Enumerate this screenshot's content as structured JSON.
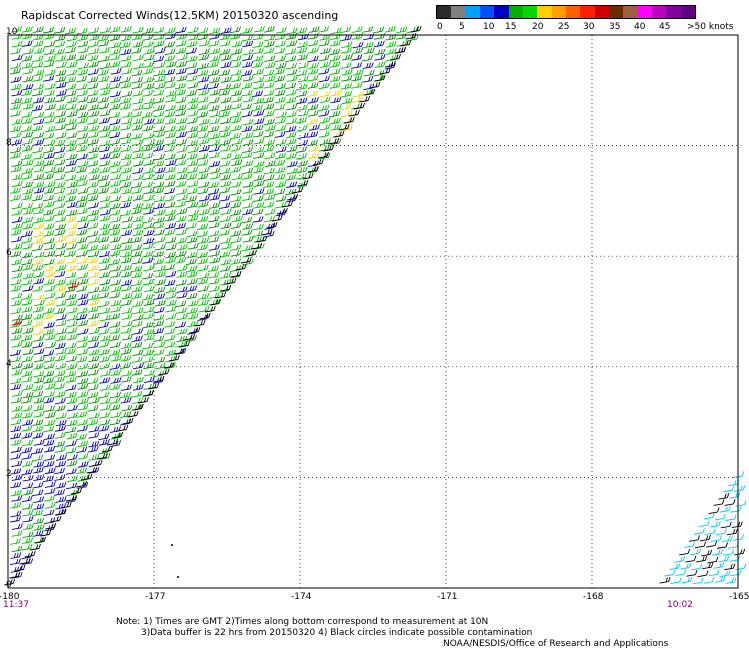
{
  "title": "Rapidscat Corrected Winds(12.5KM) 20150320 ascending",
  "legend": {
    "colors": [
      "#2a2a2a",
      "#808080",
      "#00a0ff",
      "#0050ff",
      "#0000c0",
      "#00b000",
      "#00d800",
      "#ffd000",
      "#ffa000",
      "#ff6000",
      "#ff2000",
      "#d00000",
      "#6a2c00",
      "#a06040",
      "#ff00ff",
      "#c000c0",
      "#8000a0",
      "#600080"
    ],
    "ticks": [
      "0",
      "5",
      "10",
      "15",
      "20",
      "25",
      "30",
      "35",
      "40",
      "45",
      ">50 knots"
    ]
  },
  "chart_data": {
    "type": "map",
    "x_ticks": [
      "-180",
      "-177",
      "-174",
      "-171",
      "-168",
      "-165"
    ],
    "y_ticks": [
      "0",
      "2",
      "4",
      "6",
      "8",
      "10"
    ],
    "xlim": [
      -180,
      -165
    ],
    "ylim": [
      0,
      10
    ],
    "grid": true,
    "time_left": "11:37",
    "time_right": "10:02",
    "wind_color_classes": {
      "light_green_15_20": "#00c000",
      "dark_green_15_20": "#009000",
      "blue_10_15": "#0000c0",
      "yellow_20_25": "#f0d000",
      "black_contaminated": "#000000",
      "cyan_5_10": "#00c8ff",
      "red_30_35": "#d00000"
    }
  },
  "notes": {
    "line1": "Note: 1) Times are GMT 2)Times along bottom correspond to measurement at 10N",
    "line2": "3)Data buffer is 22 hrs from 20150320 4) Black circles indicate possible contamination",
    "line3": "NOAA/NESDIS/Office of Research and Applications"
  }
}
